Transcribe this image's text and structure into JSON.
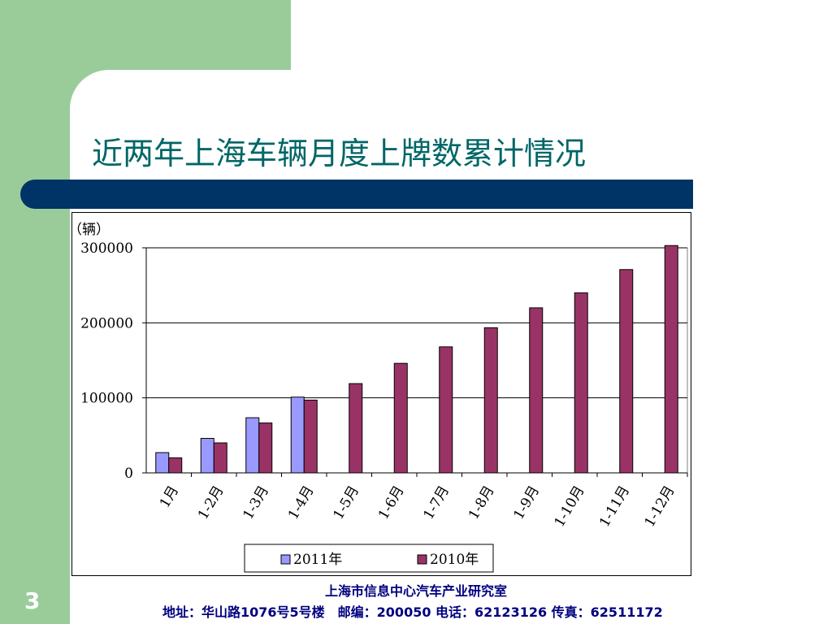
{
  "slide": {
    "title": "近两年上海车辆月度上牌数累计情况",
    "page_number": "3",
    "footer_org": "上海市信息中心汽车产业研究室",
    "footer_contact": "地址：华山路1076号5号楼　邮编：200050  电话：62123126  传真：62511172"
  },
  "colors": {
    "green_background": "#99cc99",
    "title_color": "#006666",
    "banner_color": "#003366",
    "footer_color": "#000080",
    "series_2011": "#9999ff",
    "series_2010": "#993366"
  },
  "chart_data": {
    "type": "bar",
    "unit_label": "（辆）",
    "categories": [
      "1月",
      "1-2月",
      "1-3月",
      "1-4月",
      "1-5月",
      "1-6月",
      "1-7月",
      "1-8月",
      "1-9月",
      "1-10月",
      "1-11月",
      "1-12月"
    ],
    "series": [
      {
        "name": "2011年",
        "values": [
          27000,
          46000,
          73500,
          101000,
          null,
          null,
          null,
          null,
          null,
          null,
          null,
          null
        ]
      },
      {
        "name": "2010年",
        "values": [
          20000,
          40000,
          66500,
          97000,
          119000,
          146000,
          168000,
          193500,
          220000,
          240000,
          271000,
          303000
        ]
      }
    ],
    "yticks": [
      "0",
      "100000",
      "200000",
      "300000"
    ],
    "ylim": [
      0,
      300000
    ],
    "grid": true,
    "legend_position": "bottom"
  }
}
